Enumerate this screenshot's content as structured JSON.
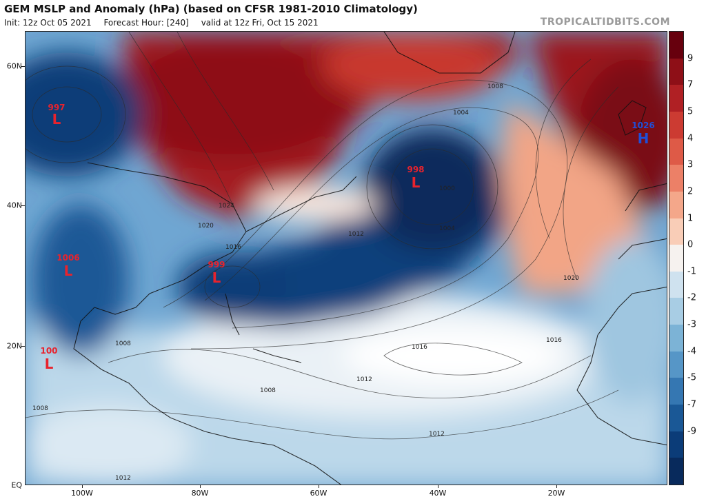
{
  "header": {
    "title": "GEM MSLP and Anomaly (hPa) (based on CFSR 1981-2010 Climatology)",
    "init": "Init: 12z Oct 05 2021",
    "forecast_hour": "Forecast Hour: [240]",
    "valid": "valid at 12z Fri, Oct 15 2021",
    "brand": "TROPICALTIDBITS.COM"
  },
  "axes": {
    "lat_labels": [
      "60N",
      "40N",
      "20N",
      "EQ"
    ],
    "lon_labels": [
      "100W",
      "80W",
      "60W",
      "40W",
      "20W"
    ]
  },
  "colorbar": {
    "labels": [
      "9",
      "7",
      "5",
      "4",
      "3",
      "2",
      "1",
      "0",
      "-1",
      "-2",
      "-3",
      "-4",
      "-5",
      "-7",
      "-9"
    ],
    "colors": [
      "#67000d",
      "#8e0f17",
      "#b02024",
      "#cc3b32",
      "#de5a47",
      "#ec8067",
      "#f4a78a",
      "#f9cdb7",
      "#f6f2ef",
      "#cfe2ef",
      "#a8cde4",
      "#7cb3d6",
      "#5696c7",
      "#3577b2",
      "#1a5896",
      "#0b3c78",
      "#082a5c"
    ]
  },
  "systems": [
    {
      "type": "L",
      "value": "997",
      "color": "#e8232d"
    },
    {
      "type": "L",
      "value": "998",
      "color": "#e8232d"
    },
    {
      "type": "L",
      "value": "999",
      "color": "#e8232d"
    },
    {
      "type": "L",
      "value": "1006",
      "color": "#e8232d"
    },
    {
      "type": "L",
      "value": "100",
      "color": "#e8232d"
    },
    {
      "type": "H",
      "value": "1026",
      "color": "#1f4fd8"
    }
  ],
  "contour_labels": [
    "1008",
    "1012",
    "1016",
    "1020",
    "1024",
    "1004",
    "1000"
  ],
  "colors": {
    "text": "#111111",
    "brand": "#9a9a9a",
    "border": "#222222"
  }
}
